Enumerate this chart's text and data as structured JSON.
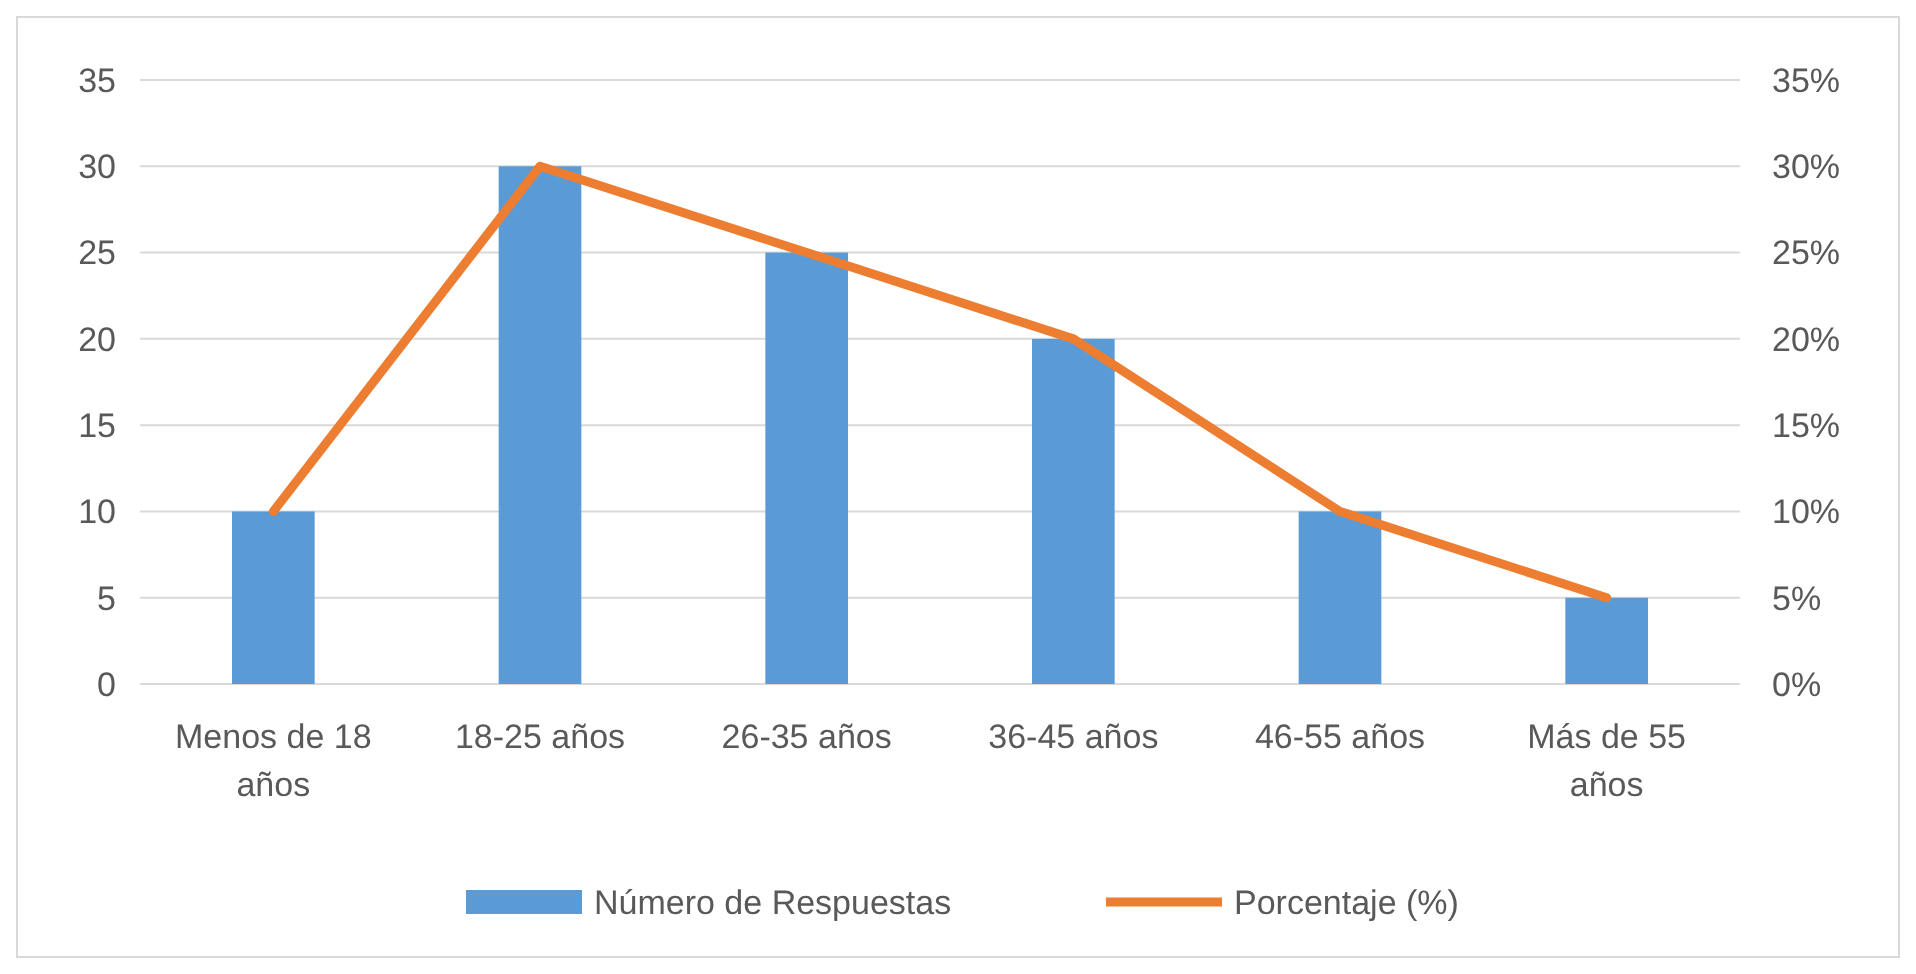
{
  "chart_data": {
    "type": "bar",
    "categories": [
      "Menos de 18 años",
      "18-25 años",
      "26-35 años",
      "36-45 años",
      "46-55 años",
      "Más de 55 años"
    ],
    "series": [
      {
        "name": "Número de Respuestas",
        "color": "#5b9bd5",
        "values": [
          10,
          30,
          25,
          20,
          10,
          5
        ]
      },
      {
        "name": "Porcentaje (%)",
        "type": "line",
        "axis": "y2",
        "color": "#ed7d31",
        "values": [
          10,
          30,
          25,
          20,
          10,
          5
        ]
      }
    ],
    "ylim": [
      0,
      35
    ],
    "yticks": [
      0,
      5,
      10,
      15,
      20,
      25,
      30,
      35
    ],
    "y2lim": [
      0,
      35
    ],
    "y2ticks": [
      {
        "value": 0,
        "label": "0%"
      },
      {
        "value": 5,
        "label": "5%"
      },
      {
        "value": 10,
        "label": "10%"
      },
      {
        "value": 15,
        "label": "15%"
      },
      {
        "value": 20,
        "label": "20%"
      },
      {
        "value": 25,
        "label": "25%"
      },
      {
        "value": 30,
        "label": "30%"
      },
      {
        "value": 35,
        "label": "35%"
      }
    ],
    "grid": "y",
    "legend": "bottom",
    "marker": "none",
    "line_style": "solid"
  }
}
